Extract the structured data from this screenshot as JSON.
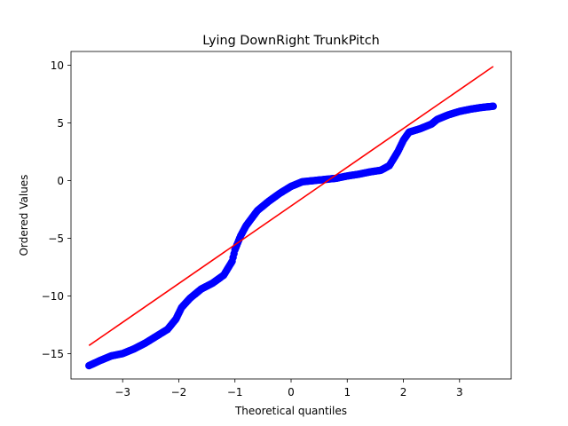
{
  "chart_data": {
    "type": "scatter",
    "title": "Lying DownRight TrunkPitch",
    "xlabel": "Theoretical quantiles",
    "ylabel": "Ordered Values",
    "xlim": [
      -3.92,
      3.92
    ],
    "ylim": [
      -17.2,
      11.2
    ],
    "xticks": [
      -3,
      -2,
      -1,
      0,
      1,
      2,
      3
    ],
    "yticks": [
      -15,
      -10,
      -5,
      0,
      5,
      10
    ],
    "grid": false,
    "colors": {
      "points": "#0000ff",
      "fit_line": "#ff0000"
    },
    "fit_line": {
      "x": [
        -3.6,
        3.6
      ],
      "y": [
        -14.3,
        9.9
      ]
    },
    "quantile_curve": [
      [
        -3.6,
        -16.05
      ],
      [
        -3.4,
        -15.6
      ],
      [
        -3.2,
        -15.2
      ],
      [
        -3.0,
        -15.0
      ],
      [
        -2.8,
        -14.6
      ],
      [
        -2.6,
        -14.1
      ],
      [
        -2.4,
        -13.5
      ],
      [
        -2.2,
        -12.9
      ],
      [
        -2.05,
        -12.0
      ],
      [
        -1.95,
        -11.0
      ],
      [
        -1.8,
        -10.2
      ],
      [
        -1.6,
        -9.4
      ],
      [
        -1.4,
        -8.9
      ],
      [
        -1.2,
        -8.2
      ],
      [
        -1.05,
        -7.0
      ],
      [
        -1.0,
        -6.0
      ],
      [
        -0.9,
        -4.8
      ],
      [
        -0.8,
        -3.9
      ],
      [
        -0.6,
        -2.6
      ],
      [
        -0.4,
        -1.8
      ],
      [
        -0.2,
        -1.1
      ],
      [
        0.0,
        -0.5
      ],
      [
        0.2,
        -0.1
      ],
      [
        0.4,
        0.0
      ],
      [
        0.6,
        0.1
      ],
      [
        0.8,
        0.2
      ],
      [
        1.0,
        0.4
      ],
      [
        1.2,
        0.55
      ],
      [
        1.4,
        0.75
      ],
      [
        1.6,
        0.9
      ],
      [
        1.75,
        1.3
      ],
      [
        1.9,
        2.5
      ],
      [
        2.0,
        3.5
      ],
      [
        2.1,
        4.2
      ],
      [
        2.3,
        4.5
      ],
      [
        2.5,
        4.9
      ],
      [
        2.6,
        5.3
      ],
      [
        2.8,
        5.7
      ],
      [
        3.0,
        6.0
      ],
      [
        3.2,
        6.2
      ],
      [
        3.4,
        6.35
      ],
      [
        3.6,
        6.45
      ]
    ]
  }
}
